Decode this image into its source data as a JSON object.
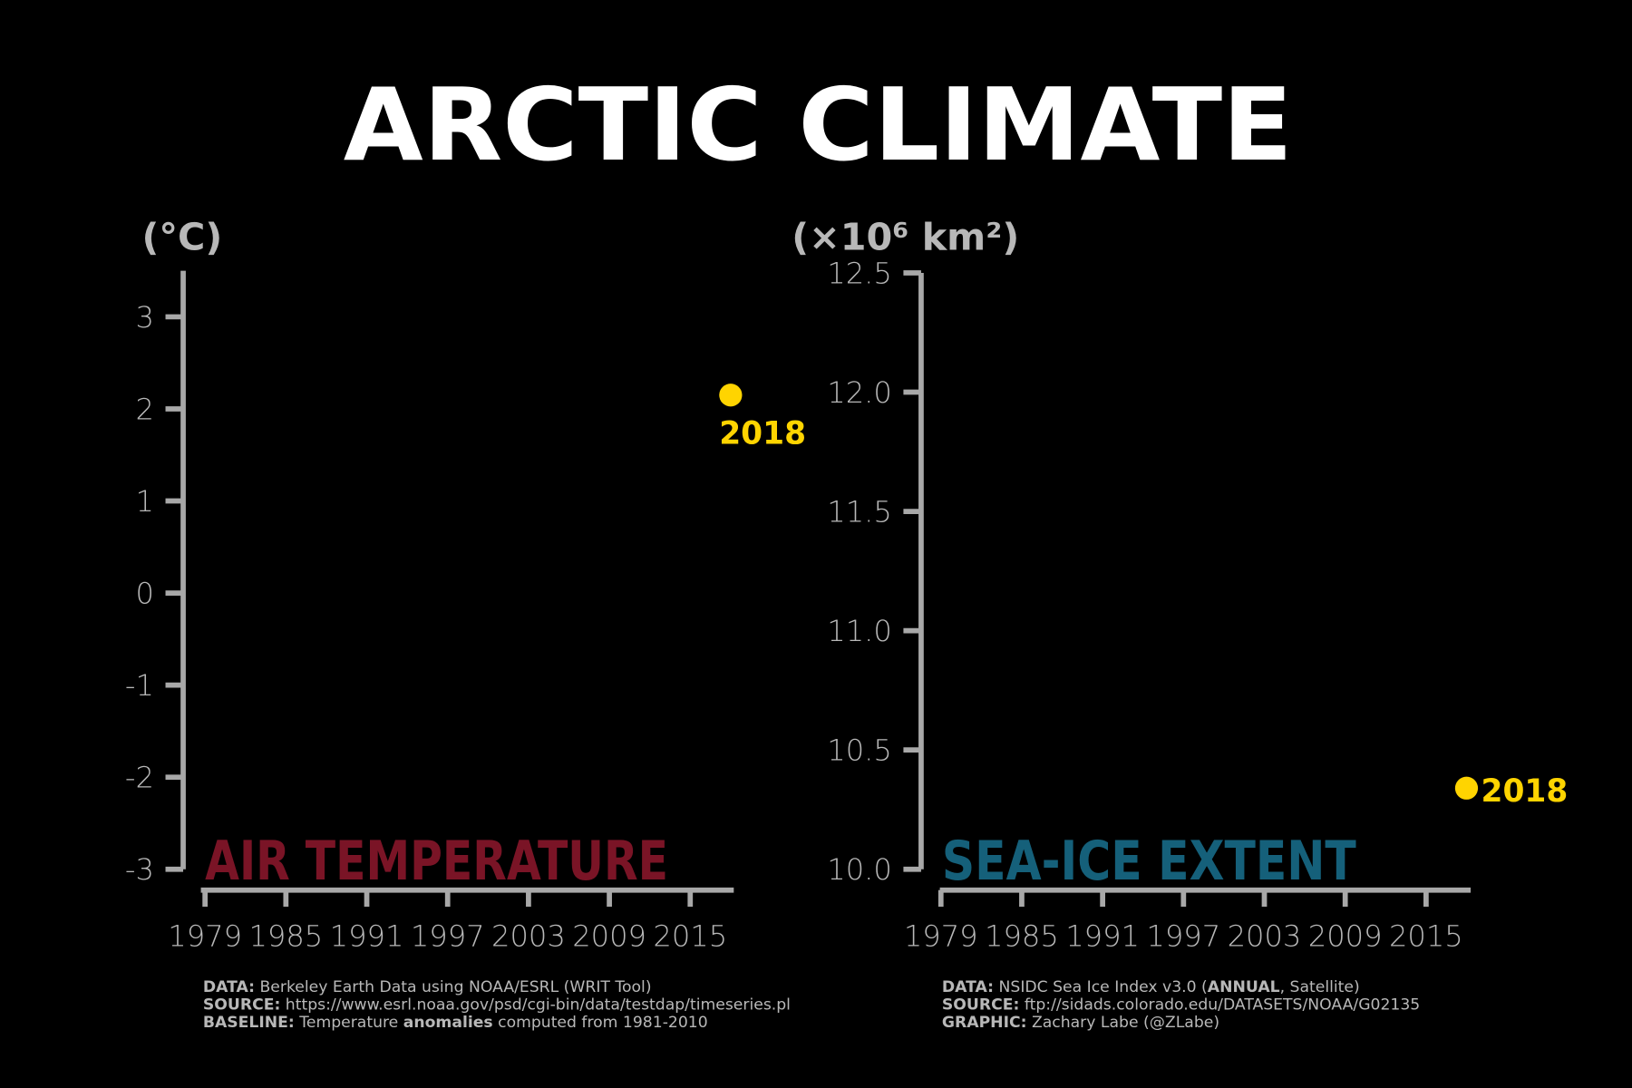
{
  "title": "ARCTIC CLIMATE",
  "chart_data": [
    {
      "type": "scatter",
      "name": "AIR TEMPERATURE",
      "name_color": "#7a1426",
      "y_label": "(°C)",
      "x": [
        2018
      ],
      "values": [
        2.15
      ],
      "color": "#ffd400",
      "xlim": [
        1979,
        2018
      ],
      "xticks": [
        1979,
        1985,
        1991,
        1997,
        2003,
        2009,
        2015
      ],
      "ylim": [
        -3,
        3.5
      ],
      "yticks": [
        -3,
        -2,
        -1,
        0,
        1,
        2,
        3
      ],
      "notes": [
        [
          "DATA:",
          " Berkeley Earth Data using NOAA/ESRL (WRIT Tool)"
        ],
        [
          "SOURCE:",
          " https://www.esrl.noaa.gov/psd/cgi-bin/data/testdap/timeseries.pl"
        ],
        [
          "BASELINE:",
          " Temperature ",
          "anomalies",
          " computed from 1981-2010"
        ]
      ]
    },
    {
      "type": "scatter",
      "name": "SEA-ICE EXTENT",
      "name_color": "#15607a",
      "y_label": "(×10⁶ km²)",
      "x": [
        2018
      ],
      "values": [
        10.34
      ],
      "color": "#ffd400",
      "xlim": [
        1979,
        2018
      ],
      "xticks": [
        1979,
        1985,
        1991,
        1997,
        2003,
        2009,
        2015
      ],
      "ylim": [
        10,
        12.5
      ],
      "yticks": [
        {
          "value": 10,
          "label": "10.0"
        },
        10.5,
        {
          "value": 11,
          "label": "11.0"
        },
        11.5,
        {
          "value": 12,
          "label": "12.0"
        },
        12.5
      ],
      "notes": [
        [
          "DATA:",
          " NSIDC Sea Ice Index v3.0 (",
          "ANNUAL",
          ", Satellite)"
        ],
        [
          "SOURCE:",
          " ftp://sidads.colorado.edu/DATASETS/NOAA/G02135"
        ],
        [
          "GRAPHIC:",
          " Zachary Labe (@ZLabe)"
        ]
      ]
    }
  ]
}
